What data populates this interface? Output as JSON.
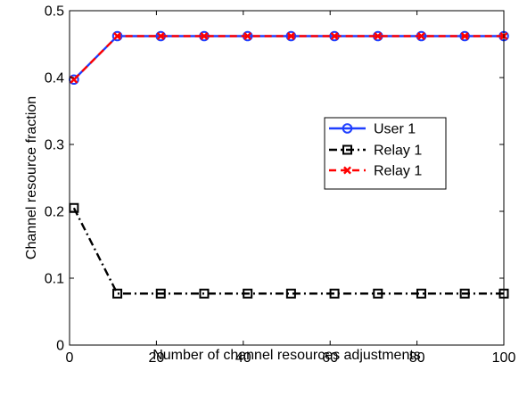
{
  "chart_data": {
    "type": "line",
    "title": "",
    "xlabel": "Number of channel resources adjustments",
    "ylabel": "Channel resource fraction",
    "xlim": [
      0,
      100
    ],
    "ylim": [
      0,
      0.5
    ],
    "xticks": [
      0,
      20,
      40,
      60,
      80,
      100
    ],
    "yticks": [
      0,
      0.1,
      0.2,
      0.3,
      0.4,
      0.5
    ],
    "xtick_labels": [
      "0",
      "20",
      "40",
      "60",
      "80",
      "100"
    ],
    "ytick_labels": [
      "0",
      "0.1",
      "0.2",
      "0.3",
      "0.4",
      "0.5"
    ],
    "grid": false,
    "legend_position": "center-right",
    "x": [
      1,
      11,
      21,
      31,
      41,
      51,
      61,
      71,
      81,
      91,
      100
    ],
    "series": [
      {
        "name": "User 1",
        "color": "#1f3fff",
        "line_style": "solid",
        "marker": "circle",
        "values": [
          0.397,
          0.462,
          0.462,
          0.462,
          0.462,
          0.462,
          0.462,
          0.462,
          0.462,
          0.462,
          0.462
        ]
      },
      {
        "name": "Relay 1",
        "color": "#000000",
        "line_style": "dash-dot",
        "marker": "square",
        "values": [
          0.205,
          0.077,
          0.077,
          0.077,
          0.077,
          0.077,
          0.077,
          0.077,
          0.077,
          0.077,
          0.077
        ]
      },
      {
        "name": "Relay 1",
        "color": "#ff0000",
        "line_style": "dashed",
        "marker": "x",
        "values": [
          0.397,
          0.462,
          0.462,
          0.462,
          0.462,
          0.462,
          0.462,
          0.462,
          0.462,
          0.462,
          0.462
        ]
      }
    ]
  }
}
